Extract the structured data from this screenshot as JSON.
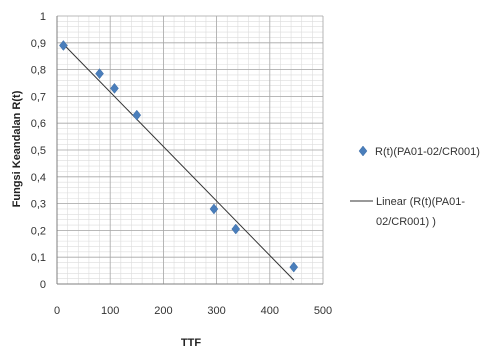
{
  "chart_data": {
    "type": "scatter",
    "xlabel": "TTF",
    "ylabel": "Fungsi Keandalan R(t)",
    "xlim": [
      0,
      500
    ],
    "ylim": [
      0,
      1
    ],
    "xticks": [
      "0",
      "100",
      "200",
      "300",
      "400",
      "500"
    ],
    "yticks": [
      "0",
      "0,1",
      "0,2",
      "0,3",
      "0,4",
      "0,5",
      "0,6",
      "0,7",
      "0,8",
      "0,9",
      "1"
    ],
    "grid": true,
    "legend_position": "right",
    "series": [
      {
        "name": "R(t)(PA01-02/CR001)",
        "marker": "diamond",
        "color": "#4a7ebb",
        "x": [
          12,
          80,
          108,
          150,
          295,
          336,
          445
        ],
        "y": [
          0.89,
          0.785,
          0.73,
          0.63,
          0.28,
          0.205,
          0.063
        ]
      }
    ],
    "trendline": {
      "name_lines": [
        "Linear (R(t)(PA01-",
        "02/CR001) )"
      ],
      "type": "linear",
      "color": "#333333",
      "x": [
        12,
        445
      ],
      "y": [
        0.895,
        0.015
      ]
    }
  }
}
